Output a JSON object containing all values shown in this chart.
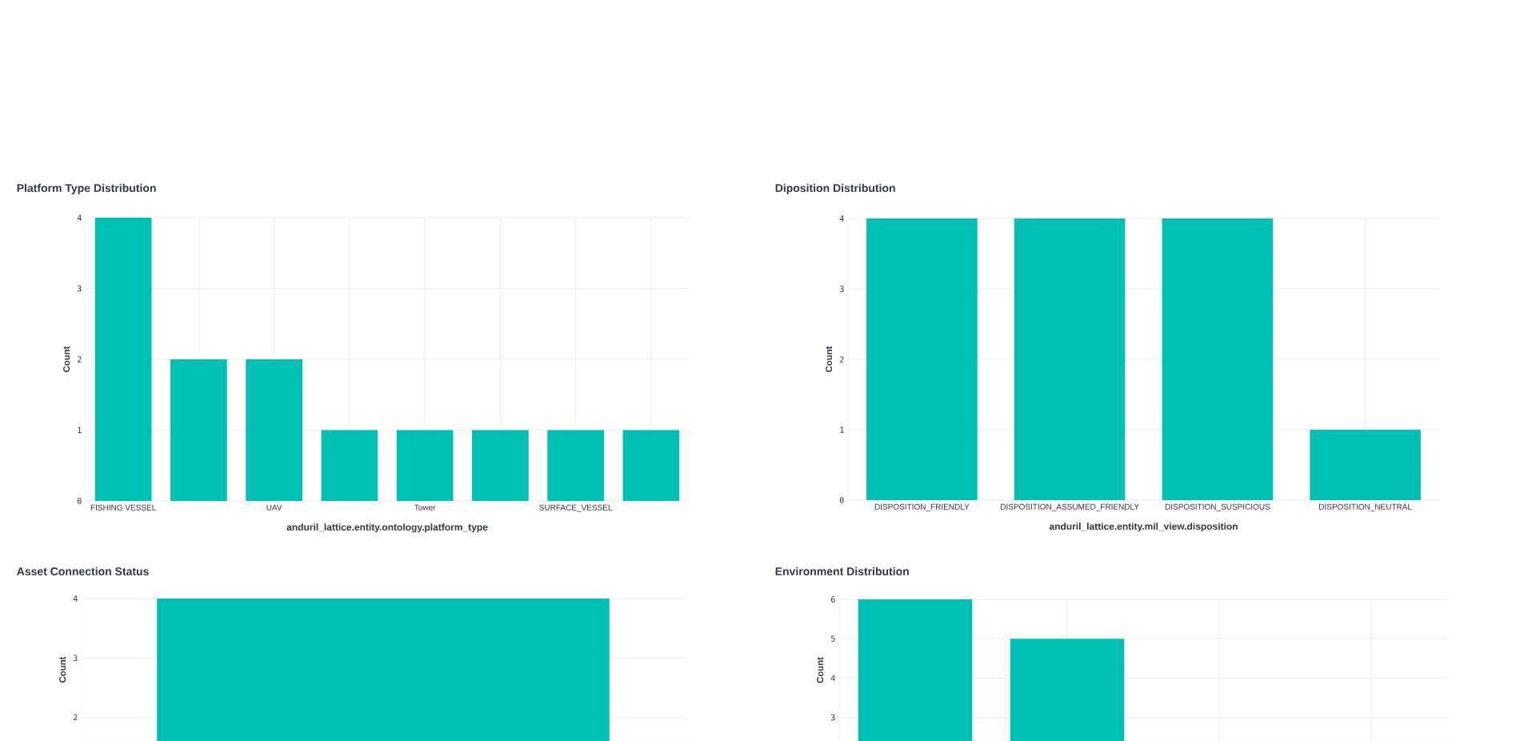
{
  "chart_data": [
    {
      "type": "bar",
      "title": "Platform Type Distribution",
      "xlabel": "anduril_lattice.entity.ontology.platform_type",
      "ylabel": "Count",
      "categories": [
        "FISHING VESSEL",
        null,
        "UAV",
        null,
        "Tower",
        null,
        "SURFACE_VESSEL",
        null
      ],
      "values": [
        4,
        2,
        2,
        1,
        1,
        1,
        1,
        1
      ],
      "color": "#00bfb3",
      "ylim": [
        0,
        4
      ],
      "yticks": [
        0,
        1,
        2,
        3,
        4
      ],
      "grid": true
    },
    {
      "type": "bar",
      "title": "Diposition Distribution",
      "xlabel": "anduril_lattice.entity.mil_view.disposition",
      "ylabel": "Count",
      "categories": [
        "DISPOSITION_FRIENDLY",
        "DISPOSITION_ASSUMED_FRIENDLY",
        "DISPOSITION_SUSPICIOUS",
        "DISPOSITION_NEUTRAL"
      ],
      "values": [
        4,
        4,
        4,
        1
      ],
      "color": "#00bfb3",
      "ylim": [
        0,
        4
      ],
      "yticks": [
        0,
        1,
        2,
        3,
        4
      ],
      "grid": true
    },
    {
      "type": "bar",
      "title": "Asset Connection Status",
      "ylabel": "Count",
      "categories": [
        null
      ],
      "values": [
        4
      ],
      "color": "#00bfb3",
      "ylim": [
        1.6,
        4
      ],
      "yticks": [
        2,
        3,
        4
      ],
      "grid": true,
      "tick_labels": "y"
    },
    {
      "type": "bar",
      "title": "Environment Distribution",
      "ylabel": "Count",
      "categories": [
        null,
        null,
        null,
        null
      ],
      "values": [
        6,
        5,
        null,
        null
      ],
      "color": "#00bfb3",
      "ylim": [
        2.4,
        6
      ],
      "yticks": [
        3,
        4,
        5,
        6
      ],
      "grid": true,
      "tick_labels": "y"
    }
  ]
}
